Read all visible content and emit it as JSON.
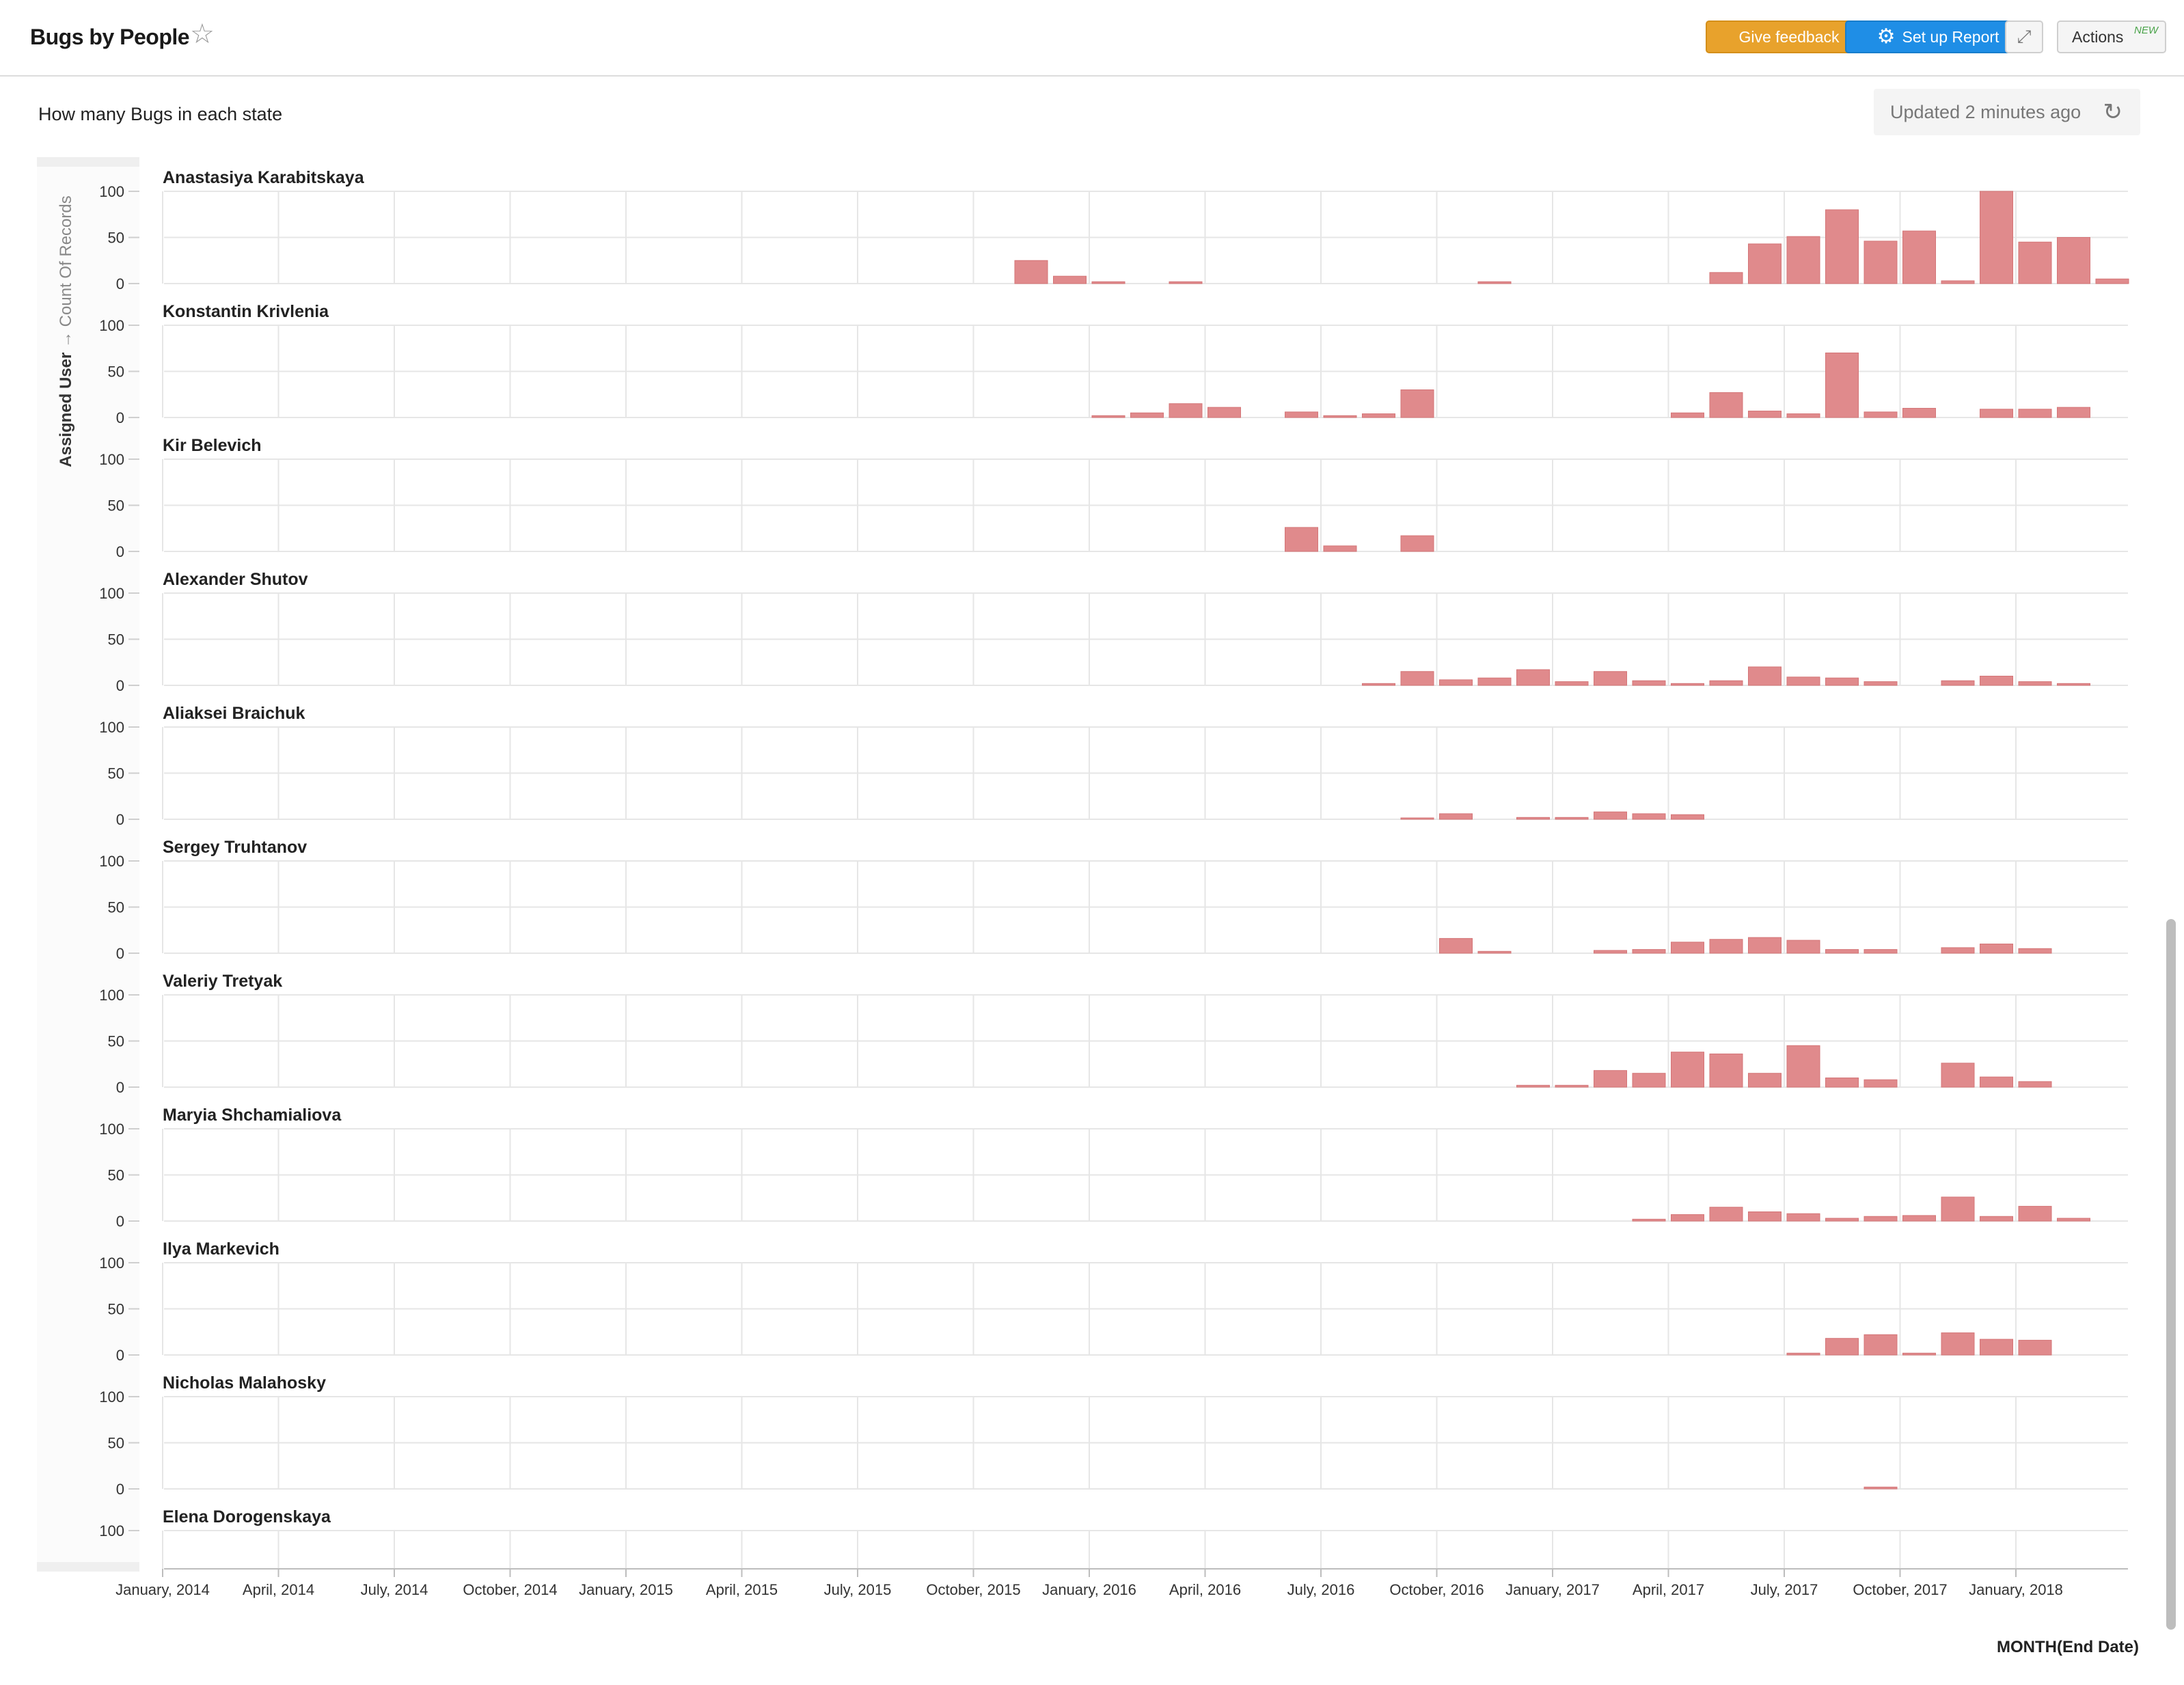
{
  "header": {
    "title": "Bugs by People",
    "star_icon": "star-icon",
    "feedback_label": "Give feedback",
    "setup_label": "Set up Report",
    "setup_icon": "gear-icon",
    "expand_icon": "expand-icon",
    "actions_label": "Actions",
    "actions_badge": "NEW"
  },
  "subheader": {
    "question": "How many Bugs in each state",
    "updated": "Updated 2 minutes ago",
    "refresh_icon": "refresh-icon"
  },
  "colors": {
    "bar": "#e08a8c",
    "feedback": "#e8a22c",
    "setup": "#1f8ee6"
  },
  "chart_data": {
    "type": "bar",
    "facet_by": "Assigned User",
    "ylabel_group": "Assigned User",
    "ylabel_arrow": "→",
    "ylabel_measure": "Count Of Records",
    "xlabel": "MONTH(End Date)",
    "ylim": [
      0,
      100
    ],
    "yticks": [
      0,
      50,
      100
    ],
    "x_ticks": [
      "January, 2014",
      "April, 2014",
      "July, 2014",
      "October, 2014",
      "January, 2015",
      "April, 2015",
      "July, 2015",
      "October, 2015",
      "January, 2016",
      "April, 2016",
      "July, 2016",
      "October, 2016",
      "January, 2017",
      "April, 2017",
      "July, 2017",
      "October, 2017",
      "January, 2018"
    ],
    "x_start": "2014-01",
    "x_end": "2018-05",
    "series": [
      {
        "name": "Anastasiya Karabitskaya",
        "points": [
          [
            "2015-11",
            25
          ],
          [
            "2015-12",
            8
          ],
          [
            "2016-01",
            2
          ],
          [
            "2016-03",
            2
          ],
          [
            "2016-11",
            2
          ],
          [
            "2017-05",
            12
          ],
          [
            "2017-06",
            43
          ],
          [
            "2017-07",
            51
          ],
          [
            "2017-08",
            80
          ],
          [
            "2017-09",
            46
          ],
          [
            "2017-10",
            57
          ],
          [
            "2017-11",
            3
          ],
          [
            "2017-12",
            100
          ],
          [
            "2018-01",
            45
          ],
          [
            "2018-02",
            50
          ],
          [
            "2018-03",
            5
          ]
        ]
      },
      {
        "name": "Konstantin Krivlenia",
        "points": [
          [
            "2016-01",
            2
          ],
          [
            "2016-02",
            5
          ],
          [
            "2016-03",
            15
          ],
          [
            "2016-04",
            11
          ],
          [
            "2016-06",
            6
          ],
          [
            "2016-07",
            2
          ],
          [
            "2016-08",
            4
          ],
          [
            "2016-09",
            30
          ],
          [
            "2017-04",
            5
          ],
          [
            "2017-05",
            27
          ],
          [
            "2017-06",
            7
          ],
          [
            "2017-07",
            4
          ],
          [
            "2017-08",
            70
          ],
          [
            "2017-09",
            6
          ],
          [
            "2017-10",
            10
          ],
          [
            "2017-12",
            9
          ],
          [
            "2018-01",
            9
          ],
          [
            "2018-02",
            11
          ]
        ]
      },
      {
        "name": "Kir Belevich",
        "points": [
          [
            "2016-06",
            26
          ],
          [
            "2016-07",
            6
          ],
          [
            "2016-09",
            17
          ]
        ]
      },
      {
        "name": "Alexander Shutov",
        "points": [
          [
            "2016-08",
            2
          ],
          [
            "2016-09",
            15
          ],
          [
            "2016-10",
            6
          ],
          [
            "2016-11",
            8
          ],
          [
            "2016-12",
            17
          ],
          [
            "2017-01",
            4
          ],
          [
            "2017-02",
            15
          ],
          [
            "2017-03",
            5
          ],
          [
            "2017-04",
            2
          ],
          [
            "2017-05",
            5
          ],
          [
            "2017-06",
            20
          ],
          [
            "2017-07",
            9
          ],
          [
            "2017-08",
            8
          ],
          [
            "2017-09",
            4
          ],
          [
            "2017-11",
            5
          ],
          [
            "2017-12",
            10
          ],
          [
            "2018-01",
            4
          ],
          [
            "2018-02",
            2
          ]
        ]
      },
      {
        "name": "Aliaksei Braichuk",
        "points": [
          [
            "2016-09",
            1
          ],
          [
            "2016-10",
            6
          ],
          [
            "2016-12",
            2
          ],
          [
            "2017-01",
            2
          ],
          [
            "2017-02",
            8
          ],
          [
            "2017-03",
            6
          ],
          [
            "2017-04",
            5
          ]
        ]
      },
      {
        "name": "Sergey Truhtanov",
        "points": [
          [
            "2016-10",
            16
          ],
          [
            "2016-11",
            2
          ],
          [
            "2017-02",
            3
          ],
          [
            "2017-03",
            4
          ],
          [
            "2017-04",
            12
          ],
          [
            "2017-05",
            15
          ],
          [
            "2017-06",
            17
          ],
          [
            "2017-07",
            14
          ],
          [
            "2017-08",
            4
          ],
          [
            "2017-09",
            4
          ],
          [
            "2017-11",
            6
          ],
          [
            "2017-12",
            10
          ],
          [
            "2018-01",
            5
          ]
        ]
      },
      {
        "name": "Valeriy Tretyak",
        "points": [
          [
            "2016-12",
            2
          ],
          [
            "2017-01",
            2
          ],
          [
            "2017-02",
            18
          ],
          [
            "2017-03",
            15
          ],
          [
            "2017-04",
            38
          ],
          [
            "2017-05",
            36
          ],
          [
            "2017-06",
            15
          ],
          [
            "2017-07",
            45
          ],
          [
            "2017-08",
            10
          ],
          [
            "2017-09",
            8
          ],
          [
            "2017-11",
            26
          ],
          [
            "2017-12",
            11
          ],
          [
            "2018-01",
            6
          ]
        ]
      },
      {
        "name": "Maryia Shchamialiova",
        "points": [
          [
            "2017-03",
            2
          ],
          [
            "2017-04",
            7
          ],
          [
            "2017-05",
            15
          ],
          [
            "2017-06",
            10
          ],
          [
            "2017-07",
            8
          ],
          [
            "2017-08",
            3
          ],
          [
            "2017-09",
            5
          ],
          [
            "2017-10",
            6
          ],
          [
            "2017-11",
            26
          ],
          [
            "2017-12",
            5
          ],
          [
            "2018-01",
            16
          ],
          [
            "2018-02",
            3
          ]
        ]
      },
      {
        "name": "Ilya Markevich",
        "points": [
          [
            "2017-07",
            2
          ],
          [
            "2017-08",
            18
          ],
          [
            "2017-09",
            22
          ],
          [
            "2017-10",
            2
          ],
          [
            "2017-11",
            24
          ],
          [
            "2017-12",
            17
          ],
          [
            "2018-01",
            16
          ]
        ]
      },
      {
        "name": "Nicholas Malahosky",
        "points": [
          [
            "2017-09",
            2
          ]
        ]
      },
      {
        "name": "Elena Dorogenskaya",
        "points": []
      }
    ]
  }
}
